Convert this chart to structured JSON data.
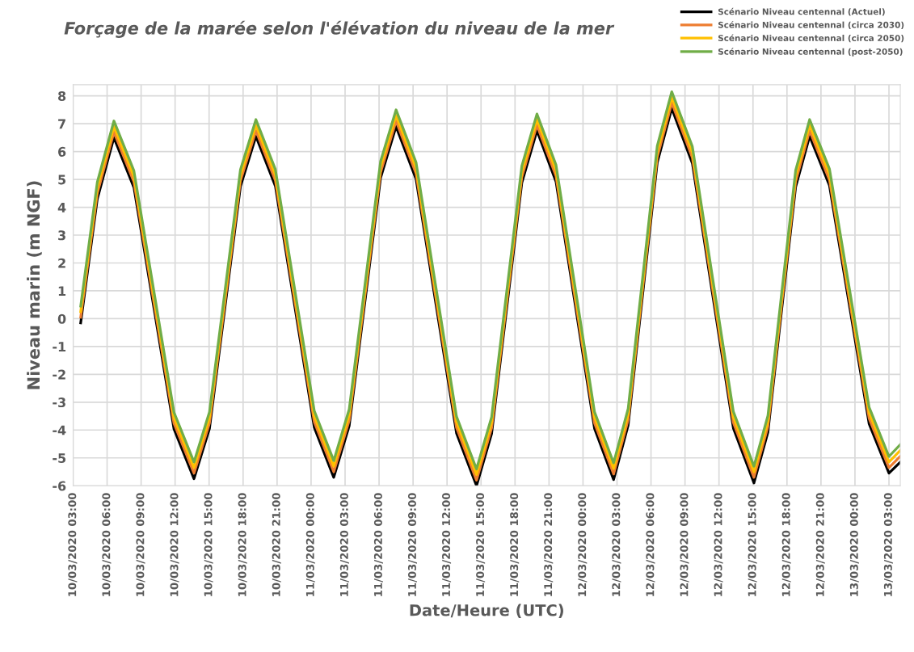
{
  "chart_data": {
    "type": "line",
    "title": "Forçage de la marée selon l'élévation du niveau de la mer",
    "xlabel": "Date/Heure (UTC)",
    "ylabel": "Niveau marin (m NGF)",
    "x": [
      "2020-03-10T03:40",
      "2020-03-10T05:08",
      "2020-03-10T06:36",
      "2020-03-10T08:22",
      "2020-03-10T10:08",
      "2020-03-10T11:54",
      "2020-03-10T13:40",
      "2020-03-10T15:02",
      "2020-03-10T16:24",
      "2020-03-10T17:46",
      "2020-03-10T19:08",
      "2020-03-10T20:51",
      "2020-03-10T22:34",
      "2020-03-11T00:17",
      "2020-03-11T02:00",
      "2020-03-11T03:22",
      "2020-03-11T04:45",
      "2020-03-11T06:08",
      "2020-03-11T07:30",
      "2020-03-11T09:16",
      "2020-03-11T11:03",
      "2020-03-11T12:50",
      "2020-03-11T14:36",
      "2020-03-11T15:56",
      "2020-03-11T17:16",
      "2020-03-11T18:36",
      "2020-03-11T19:56",
      "2020-03-11T21:37",
      "2020-03-11T23:19",
      "2020-03-12T01:01",
      "2020-03-12T02:42",
      "2020-03-12T03:59",
      "2020-03-12T05:16",
      "2020-03-12T06:33",
      "2020-03-12T07:50",
      "2020-03-12T09:39",
      "2020-03-12T11:27",
      "2020-03-12T13:16",
      "2020-03-12T15:05",
      "2020-03-12T16:19",
      "2020-03-12T17:32",
      "2020-03-12T18:46",
      "2020-03-12T20:00",
      "2020-03-12T21:45",
      "2020-03-12T23:30",
      "2020-03-13T01:15",
      "2020-03-13T03:00",
      "2020-03-13T04:00"
    ],
    "series": [
      {
        "name": "Scénario Niveau centennal (Actuel)",
        "color": "#000000",
        "values": [
          -0.15,
          4.3,
          6.5,
          4.71,
          0.38,
          -3.96,
          -5.75,
          -3.95,
          0.4,
          4.75,
          6.55,
          4.76,
          0.43,
          -3.91,
          -5.7,
          -3.85,
          0.6,
          5.05,
          6.9,
          5.01,
          0.45,
          -4.11,
          -6.0,
          -4.13,
          0.38,
          4.88,
          6.75,
          4.92,
          0.49,
          -3.95,
          -5.78,
          -3.83,
          0.89,
          5.6,
          7.55,
          5.58,
          0.83,
          -3.93,
          -5.9,
          -4.08,
          0.33,
          4.73,
          6.55,
          4.78,
          0.5,
          -3.78,
          -5.55,
          -5.15
        ]
      },
      {
        "name": "Scénario Niveau centennal (circa 2030)",
        "color": "#ed7d31",
        "values": [
          0.05,
          4.5,
          6.7,
          4.91,
          0.58,
          -3.76,
          -5.55,
          -3.75,
          0.6,
          4.95,
          6.75,
          4.96,
          0.63,
          -3.71,
          -5.5,
          -3.65,
          0.8,
          5.25,
          7.1,
          5.21,
          0.65,
          -3.91,
          -5.8,
          -3.93,
          0.58,
          5.08,
          6.95,
          5.12,
          0.69,
          -3.75,
          -5.58,
          -3.63,
          1.09,
          5.8,
          7.75,
          5.78,
          1.03,
          -3.73,
          -5.7,
          -3.88,
          0.53,
          4.93,
          6.75,
          4.98,
          0.7,
          -3.58,
          -5.35,
          -4.94
        ]
      },
      {
        "name": "Scénario Niveau centennal (circa 2050)",
        "color": "#ffc000",
        "values": [
          0.25,
          4.7,
          6.9,
          5.11,
          0.78,
          -3.56,
          -5.35,
          -3.55,
          0.8,
          5.15,
          6.95,
          5.16,
          0.83,
          -3.51,
          -5.3,
          -3.45,
          1.0,
          5.45,
          7.3,
          5.41,
          0.85,
          -3.71,
          -5.6,
          -3.73,
          0.78,
          5.28,
          7.15,
          5.32,
          0.89,
          -3.55,
          -5.38,
          -3.43,
          1.29,
          6.0,
          7.95,
          5.98,
          1.23,
          -3.53,
          -5.5,
          -3.68,
          0.73,
          5.13,
          6.95,
          5.18,
          0.9,
          -3.38,
          -5.15,
          -4.73
        ]
      },
      {
        "name": "Scénario Niveau centennal (post-2050)",
        "color": "#70ad47",
        "values": [
          0.45,
          4.9,
          7.1,
          5.31,
          0.98,
          -3.36,
          -5.15,
          -3.35,
          1.0,
          5.35,
          7.15,
          5.36,
          1.03,
          -3.31,
          -5.1,
          -3.25,
          1.2,
          5.65,
          7.5,
          5.61,
          1.05,
          -3.51,
          -5.4,
          -3.53,
          0.98,
          5.48,
          7.35,
          5.52,
          1.09,
          -3.35,
          -5.18,
          -3.23,
          1.49,
          6.2,
          8.15,
          6.18,
          1.43,
          -3.33,
          -5.3,
          -3.48,
          0.93,
          5.33,
          7.15,
          5.38,
          1.1,
          -3.18,
          -4.95,
          -4.52
        ]
      }
    ],
    "xlim": [
      "2020-03-10T03:00",
      "2020-03-13T04:00"
    ],
    "xticks": [
      {
        "value": "2020-03-10T03:00",
        "label": "10/03/2020 03:00"
      },
      {
        "value": "2020-03-10T06:00",
        "label": "10/03/2020 06:00"
      },
      {
        "value": "2020-03-10T09:00",
        "label": "10/03/2020 09:00"
      },
      {
        "value": "2020-03-10T12:00",
        "label": "10/03/2020 12:00"
      },
      {
        "value": "2020-03-10T15:00",
        "label": "10/03/2020 15:00"
      },
      {
        "value": "2020-03-10T18:00",
        "label": "10/03/2020 18:00"
      },
      {
        "value": "2020-03-10T21:00",
        "label": "10/03/2020 21:00"
      },
      {
        "value": "2020-03-11T00:00",
        "label": "11/03/2020 00:00"
      },
      {
        "value": "2020-03-11T03:00",
        "label": "11/03/2020 03:00"
      },
      {
        "value": "2020-03-11T06:00",
        "label": "11/03/2020 06:00"
      },
      {
        "value": "2020-03-11T09:00",
        "label": "11/03/2020 09:00"
      },
      {
        "value": "2020-03-11T12:00",
        "label": "11/03/2020 12:00"
      },
      {
        "value": "2020-03-11T15:00",
        "label": "11/03/2020 15:00"
      },
      {
        "value": "2020-03-11T18:00",
        "label": "11/03/2020 18:00"
      },
      {
        "value": "2020-03-11T21:00",
        "label": "11/03/2020 21:00"
      },
      {
        "value": "2020-03-12T00:00",
        "label": "12/03/2020 00:00"
      },
      {
        "value": "2020-03-12T03:00",
        "label": "12/03/2020 03:00"
      },
      {
        "value": "2020-03-12T06:00",
        "label": "12/03/2020 06:00"
      },
      {
        "value": "2020-03-12T09:00",
        "label": "12/03/2020 09:00"
      },
      {
        "value": "2020-03-12T12:00",
        "label": "12/03/2020 12:00"
      },
      {
        "value": "2020-03-12T15:00",
        "label": "12/03/2020 15:00"
      },
      {
        "value": "2020-03-12T18:00",
        "label": "12/03/2020 18:00"
      },
      {
        "value": "2020-03-12T21:00",
        "label": "12/03/2020 21:00"
      },
      {
        "value": "2020-03-13T00:00",
        "label": "13/03/2020 00:00"
      },
      {
        "value": "2020-03-13T03:00",
        "label": "13/03/2020 03:00"
      }
    ],
    "ylim": [
      -6,
      8.4
    ],
    "yticks": [
      -6,
      -5,
      -4,
      -3,
      -2,
      -1,
      0,
      1,
      2,
      3,
      4,
      5,
      6,
      7,
      8
    ],
    "grid": true,
    "legend": "top right",
    "marker": "none",
    "line_style": "solid"
  }
}
